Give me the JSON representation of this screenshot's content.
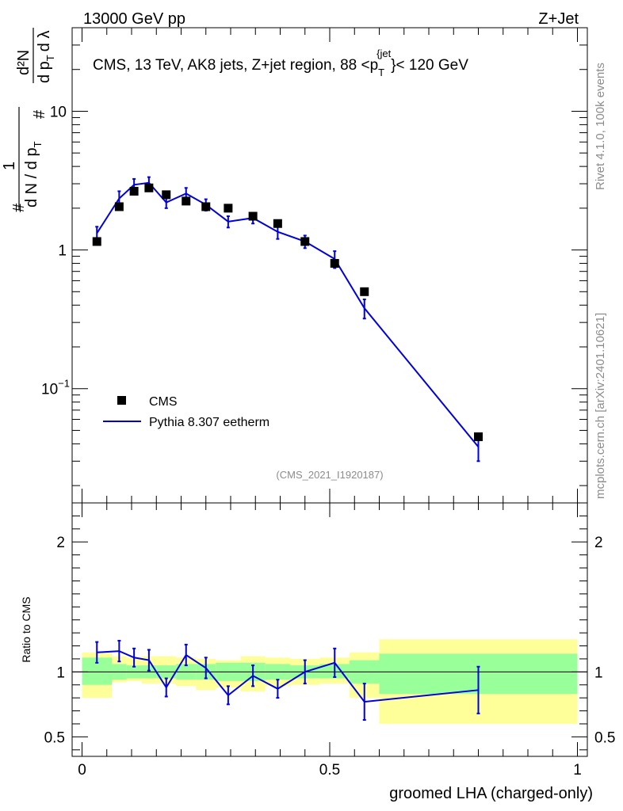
{
  "header": {
    "left": "13000 GeV pp",
    "right": "Z+Jet"
  },
  "side_labels": {
    "rivet": "Rivet 4.1.0,  100k events",
    "mcplots": "mcplots.cern.ch [arXiv:2401.10621]"
  },
  "colors": {
    "mc": "#0000dd",
    "band_inner": "#99ff99",
    "band_outer": "#ffff99",
    "data": "#000000"
  },
  "chart_data": [
    {
      "type": "scatter",
      "title": "CMS, 13 TeV, AK8 jets, Z+jet region, 88 <p_T^{jet}< 120 GeV",
      "title_parts": {
        "main": "CMS, 13 TeV, AK8 jets, Z+jet region, 88 <p",
        "sub": "T",
        "sup": "{jet",
        "close": "}< 120 GeV"
      },
      "ylabel": "1/N dN/dp_T d2N/dp_T dλ",
      "ylabel_parts": {
        "hash": "#",
        "one": "1",
        "dn": "d N / d p",
        "t": "T",
        "d2n": "d²N",
        "dpt": "d p",
        "dlam": "d λ"
      },
      "yscale": "log",
      "ylim": [
        0.015,
        40
      ],
      "xlim": [
        -0.02,
        1.02
      ],
      "y_ticks": [
        {
          "value": 10,
          "label": "10",
          "sup": ""
        },
        {
          "value": 1,
          "label": "1",
          "sup": ""
        },
        {
          "value": 0.1,
          "label": "10",
          "sup": "−1"
        }
      ],
      "watermark": "(CMS_2021_I1920187)",
      "legend": {
        "position": "bottom-left",
        "entries": [
          "CMS",
          "Pythia 8.307 eetherm"
        ]
      },
      "series": [
        {
          "name": "CMS",
          "style": "markers",
          "x": [
            0.03,
            0.075,
            0.105,
            0.135,
            0.17,
            0.21,
            0.25,
            0.295,
            0.345,
            0.395,
            0.45,
            0.51,
            0.57,
            0.8
          ],
          "y": [
            1.15,
            2.05,
            2.65,
            2.8,
            2.5,
            2.25,
            2.05,
            2.0,
            1.75,
            1.55,
            1.15,
            0.8,
            0.5,
            0.045
          ]
        },
        {
          "name": "Pythia 8.307 eetherm",
          "style": "line",
          "x": [
            0.03,
            0.075,
            0.105,
            0.135,
            0.17,
            0.21,
            0.25,
            0.295,
            0.345,
            0.395,
            0.45,
            0.51,
            0.57,
            0.8
          ],
          "y": [
            1.32,
            2.35,
            2.95,
            3.05,
            2.2,
            2.55,
            2.12,
            1.6,
            1.7,
            1.35,
            1.15,
            0.86,
            0.38,
            0.038
          ],
          "err": [
            0.15,
            0.3,
            0.3,
            0.3,
            0.2,
            0.25,
            0.2,
            0.15,
            0.15,
            0.15,
            0.12,
            0.12,
            0.06,
            0.008
          ]
        }
      ]
    },
    {
      "type": "line",
      "xlabel": "groomed LHA (charged-only)",
      "ylabel": "Ratio to CMS",
      "ylim": [
        0.35,
        2.3
      ],
      "xlim": [
        -0.02,
        1.02
      ],
      "y_ticks": [
        0.5,
        1,
        2
      ],
      "x_ticks": [
        {
          "value": 0,
          "label": "0"
        },
        {
          "value": 0.5,
          "label": "0.5"
        },
        {
          "value": 1,
          "label": "1"
        }
      ],
      "bands": {
        "edges": [
          0,
          0.06,
          0.09,
          0.12,
          0.15,
          0.19,
          0.23,
          0.27,
          0.32,
          0.37,
          0.42,
          0.48,
          0.54,
          0.6,
          1.0
        ],
        "inner_lo": [
          0.9,
          0.94,
          0.95,
          0.95,
          0.95,
          0.94,
          0.94,
          0.93,
          0.93,
          0.94,
          0.95,
          0.95,
          0.91,
          0.83
        ],
        "inner_hi": [
          1.11,
          1.06,
          1.05,
          1.05,
          1.05,
          1.06,
          1.06,
          1.07,
          1.07,
          1.06,
          1.05,
          1.06,
          1.09,
          1.14
        ],
        "outer_lo": [
          0.8,
          0.92,
          0.93,
          0.91,
          0.91,
          0.89,
          0.86,
          0.88,
          0.85,
          0.89,
          0.9,
          0.91,
          0.8,
          0.6
        ],
        "outer_hi": [
          1.15,
          1.12,
          1.11,
          1.12,
          1.12,
          1.11,
          1.1,
          1.09,
          1.12,
          1.11,
          1.1,
          1.11,
          1.15,
          1.25
        ]
      },
      "series": [
        {
          "name": "Pythia 8.307 eetherm / CMS",
          "x": [
            0.03,
            0.075,
            0.105,
            0.135,
            0.17,
            0.21,
            0.25,
            0.295,
            0.345,
            0.395,
            0.45,
            0.51,
            0.57,
            0.8
          ],
          "y": [
            1.15,
            1.16,
            1.11,
            1.09,
            0.88,
            1.13,
            1.03,
            0.82,
            0.97,
            0.87,
            1.0,
            1.07,
            0.77,
            0.86
          ],
          "err": [
            0.08,
            0.08,
            0.07,
            0.08,
            0.07,
            0.08,
            0.08,
            0.07,
            0.08,
            0.07,
            0.09,
            0.11,
            0.14,
            0.18
          ]
        }
      ]
    }
  ]
}
